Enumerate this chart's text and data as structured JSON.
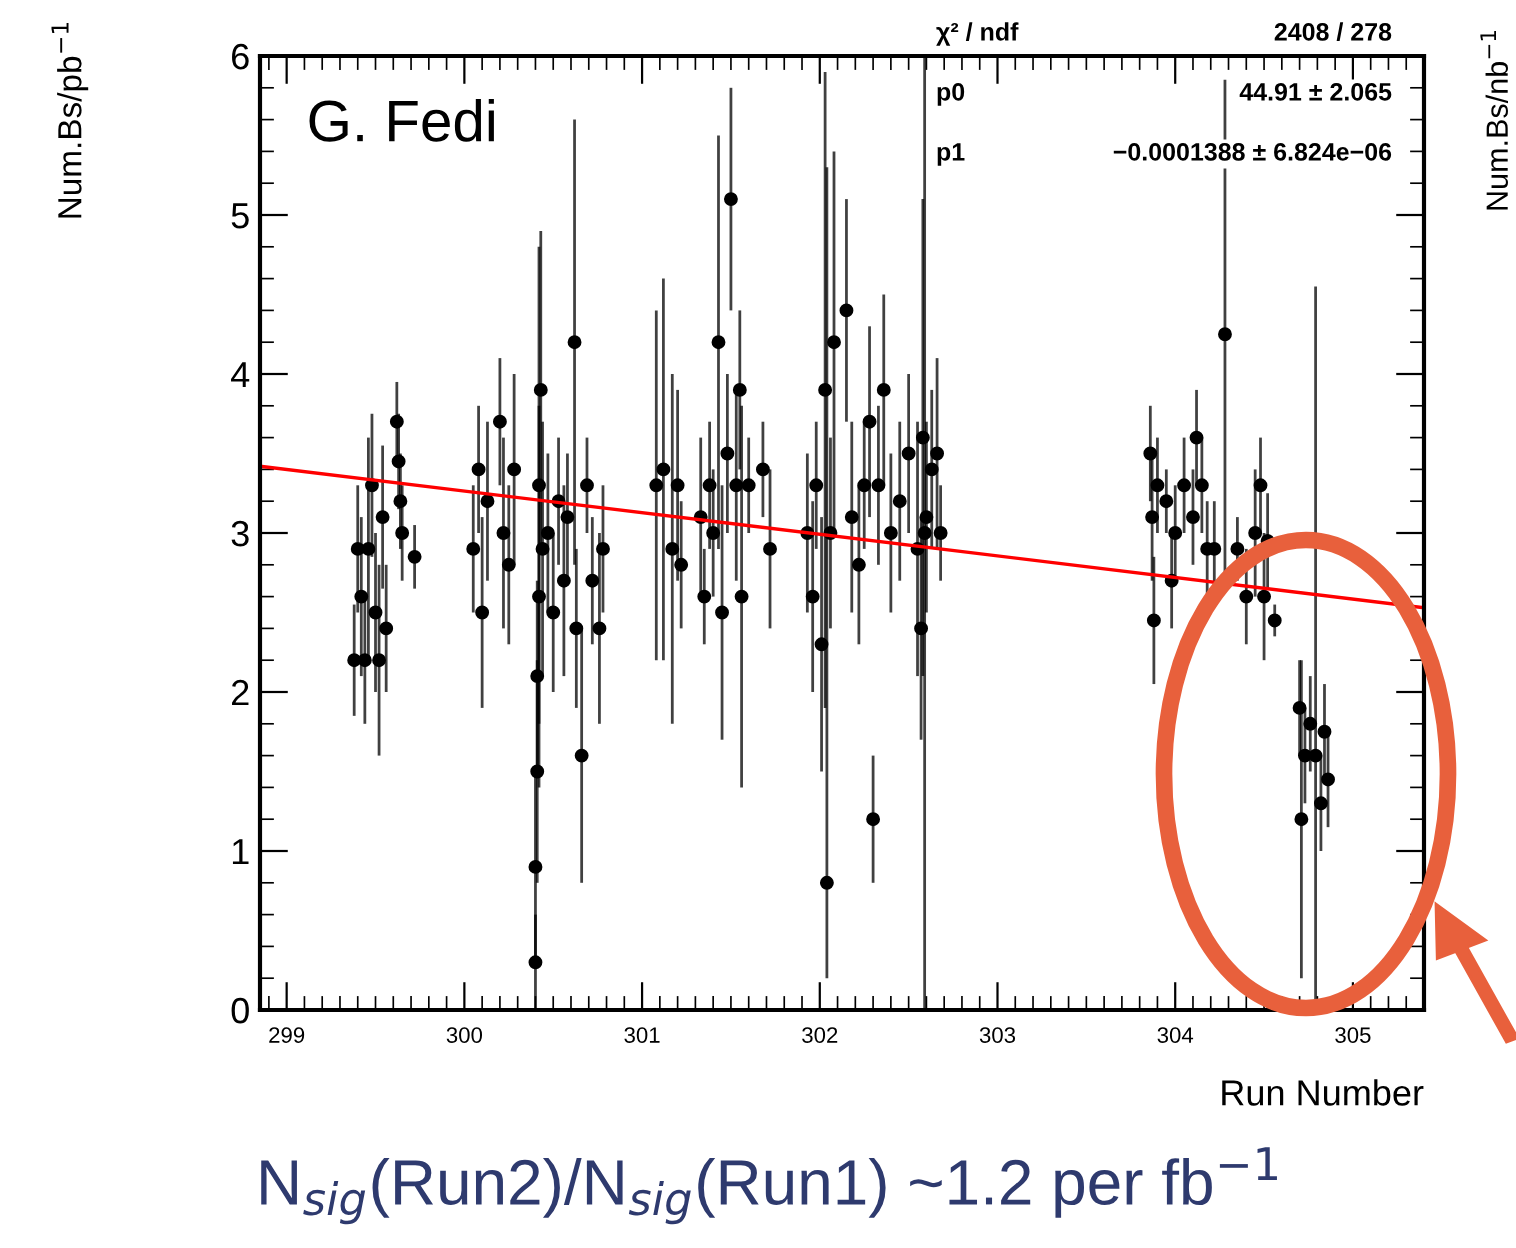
{
  "chart_data": {
    "type": "scatter",
    "xlabel": "Run Number",
    "ylabel": "Num.Bs/pb$^{−1}$",
    "xlim": [
      298.85,
      305.4
    ],
    "xticks": [
      299,
      300,
      301,
      302,
      303,
      304,
      305
    ],
    "ylim": [
      0,
      6
    ],
    "yticks": [
      0,
      1,
      2,
      3,
      4,
      5,
      6
    ],
    "grid": false,
    "annotations": [
      "G. Fedi",
      "χ² / ndf",
      "2408 / 278",
      "p0",
      "44.91 ± 2.065",
      "p1",
      "−0.0001388 ± 6.824e−06",
      "N$_{sig}$(Run2)/N$_{sig}$(Run1) ~1.2 per fb$^{−1}$",
      "Num.Bs/nb$^{−1}$"
    ],
    "series": [
      {
        "marker": "circle",
        "color": "#000000",
        "x": [
          299.38,
          299.4,
          299.42,
          299.44,
          299.46,
          299.48,
          299.5,
          299.52,
          299.54,
          299.56,
          299.62,
          299.63,
          299.64,
          299.65,
          299.72,
          300.05,
          300.08,
          300.1,
          300.13,
          300.2,
          300.22,
          300.25,
          300.28,
          300.4,
          300.4,
          300.41,
          300.41,
          300.42,
          300.42,
          300.43,
          300.44,
          300.47,
          300.5,
          300.53,
          300.56,
          300.58,
          300.62,
          300.63,
          300.66,
          300.69,
          300.72,
          300.76,
          300.78,
          301.08,
          301.12,
          301.17,
          301.2,
          301.22,
          301.33,
          301.35,
          301.38,
          301.4,
          301.43,
          301.45,
          301.48,
          301.5,
          301.53,
          301.55,
          301.56,
          301.6,
          301.68,
          301.72,
          301.93,
          301.96,
          301.98,
          302.01,
          302.03,
          302.04,
          302.06,
          302.08,
          302.15,
          302.18,
          302.22,
          302.25,
          302.28,
          302.3,
          302.33,
          302.36,
          302.4,
          302.45,
          302.5,
          302.55,
          302.57,
          302.58,
          302.59,
          302.6,
          302.63,
          302.66,
          302.68,
          303.86,
          303.87,
          303.88,
          303.9,
          303.95,
          303.98,
          304.0,
          304.05,
          304.1,
          304.12,
          304.15,
          304.18,
          304.22,
          304.28,
          304.35,
          304.4,
          304.45,
          304.48,
          304.5,
          304.52,
          304.56,
          304.7,
          304.71,
          304.73,
          304.76,
          304.79,
          304.82,
          304.84,
          304.86
        ],
        "values": [
          2.2,
          2.9,
          2.6,
          2.2,
          2.9,
          3.3,
          2.5,
          2.2,
          3.1,
          2.4,
          3.7,
          3.45,
          3.2,
          3.0,
          2.85,
          2.9,
          3.4,
          2.5,
          3.2,
          3.7,
          3.0,
          2.8,
          3.4,
          0.3,
          0.9,
          1.5,
          2.1,
          2.6,
          3.3,
          3.9,
          2.9,
          3.0,
          2.5,
          3.2,
          2.7,
          3.1,
          4.2,
          2.4,
          1.6,
          3.3,
          2.7,
          2.4,
          2.9,
          3.3,
          3.4,
          2.9,
          3.3,
          2.8,
          3.1,
          2.6,
          3.3,
          3.0,
          4.2,
          2.5,
          3.5,
          5.1,
          3.3,
          3.9,
          2.6,
          3.3,
          3.4,
          2.9,
          3.0,
          2.6,
          3.3,
          2.3,
          3.9,
          0.8,
          3.0,
          4.2,
          4.4,
          3.1,
          2.8,
          3.3,
          3.7,
          1.2,
          3.3,
          3.9,
          3.0,
          3.2,
          3.5,
          2.9,
          2.4,
          3.6,
          3.0,
          3.1,
          3.4,
          3.5,
          3.0,
          3.5,
          3.1,
          2.45,
          3.3,
          3.2,
          2.7,
          3.0,
          3.3,
          3.1,
          3.6,
          3.3,
          2.9,
          2.9,
          4.25,
          2.9,
          2.6,
          3.0,
          3.3,
          2.6,
          2.95,
          2.45,
          1.9,
          1.2,
          1.6,
          1.8,
          1.6,
          1.3,
          1.75,
          1.45
        ],
        "errors": [
          0.35,
          0.4,
          0.5,
          0.4,
          0.7,
          0.45,
          0.5,
          0.6,
          0.45,
          0.4,
          0.25,
          0.3,
          0.3,
          0.3,
          0.2,
          0.4,
          0.4,
          0.6,
          0.5,
          0.4,
          0.6,
          0.5,
          0.6,
          0.3,
          0.6,
          0.7,
          0.6,
          1.2,
          1.5,
          1.0,
          0.8,
          0.5,
          0.5,
          0.4,
          0.6,
          0.4,
          1.4,
          0.5,
          0.8,
          0.3,
          0.4,
          0.6,
          0.4,
          1.1,
          1.2,
          1.1,
          0.6,
          0.4,
          0.5,
          0.3,
          0.4,
          0.4,
          1.3,
          0.8,
          0.5,
          0.7,
          0.6,
          0.5,
          1.2,
          0.3,
          0.3,
          0.5,
          0.5,
          0.6,
          0.4,
          0.8,
          2.0,
          [
            0.2,
            5.3
          ],
          0.6,
          1.2,
          0.7,
          0.6,
          0.5,
          0.4,
          0.6,
          0.4,
          0.5,
          0.6,
          0.5,
          0.5,
          0.5,
          0.8,
          0.7,
          1.5,
          [
            0,
            6
          ],
          0.6,
          0.5,
          0.6,
          0.3,
          0.3,
          0.4,
          0.4,
          0.3,
          0.2,
          0.3,
          0.3,
          0.3,
          0.3,
          0.3,
          0.3,
          0.3,
          0.3,
          1.6,
          0.2,
          0.3,
          0.4,
          0.3,
          0.4,
          0.3,
          0.1,
          0.3,
          1.0,
          0.3,
          0.3,
          [
            0,
            4.55
          ],
          0.3,
          0.3,
          0.3
        ]
      },
      {
        "type": "line",
        "color": "#ff0000",
        "x": [
          298.85,
          305.4
        ],
        "values": [
          3.42,
          2.53
        ]
      }
    ]
  }
}
